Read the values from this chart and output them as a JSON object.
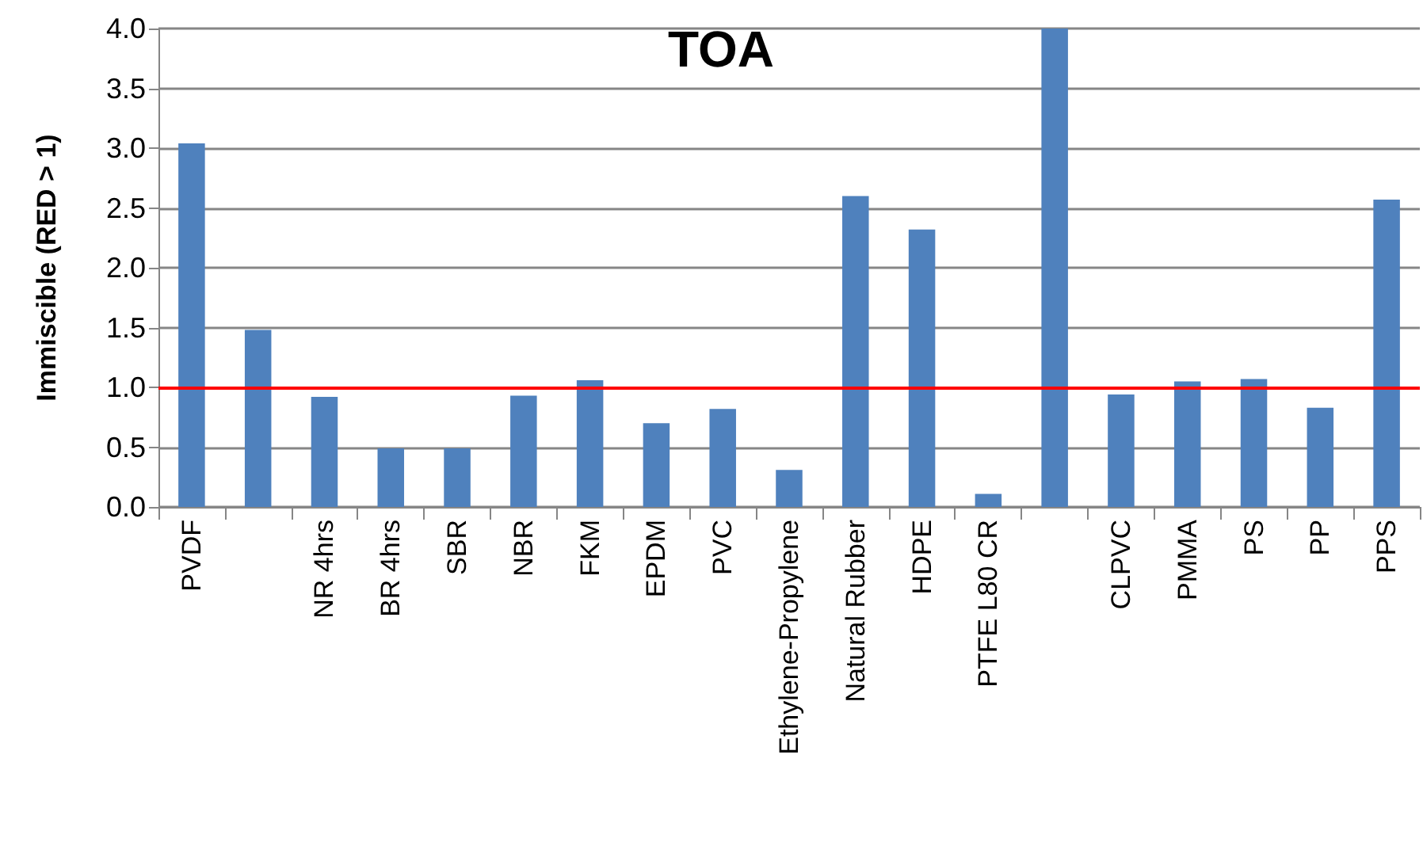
{
  "chart_data": {
    "type": "bar",
    "title": "TOA",
    "ylabel": "Immiscible (RED > 1)",
    "categories": [
      "PVDF",
      null,
      "NR 4hrs",
      "BR 4hrs",
      "SBR",
      "NBR",
      "FKM",
      "EPDM",
      "PVC",
      "Ethylene-Propylene",
      "Natural Rubber",
      "HDPE",
      "PTFE L80 CR",
      null,
      "CLPVC",
      "PMMA",
      "PS",
      "PP",
      "PPS"
    ],
    "values": [
      3.04,
      1.48,
      0.92,
      0.49,
      0.49,
      0.93,
      1.06,
      0.7,
      0.82,
      0.31,
      2.6,
      2.32,
      0.11,
      4.0,
      0.94,
      1.05,
      1.07,
      0.83,
      2.57
    ],
    "color": "#4f81bd",
    "ylim": [
      0,
      4
    ],
    "yticks": [
      {
        "value": 0,
        "label": "0.0"
      },
      0.5,
      {
        "value": 1,
        "label": "1.0"
      },
      1.5,
      {
        "value": 2,
        "label": "2.0"
      },
      2.5,
      {
        "value": 3,
        "label": "3.0"
      },
      3.5,
      {
        "value": 4,
        "label": "4.0"
      }
    ],
    "grid": "y",
    "ref_lines": [
      {
        "axis": "y",
        "value": 1,
        "color": "#ff0000"
      }
    ]
  }
}
